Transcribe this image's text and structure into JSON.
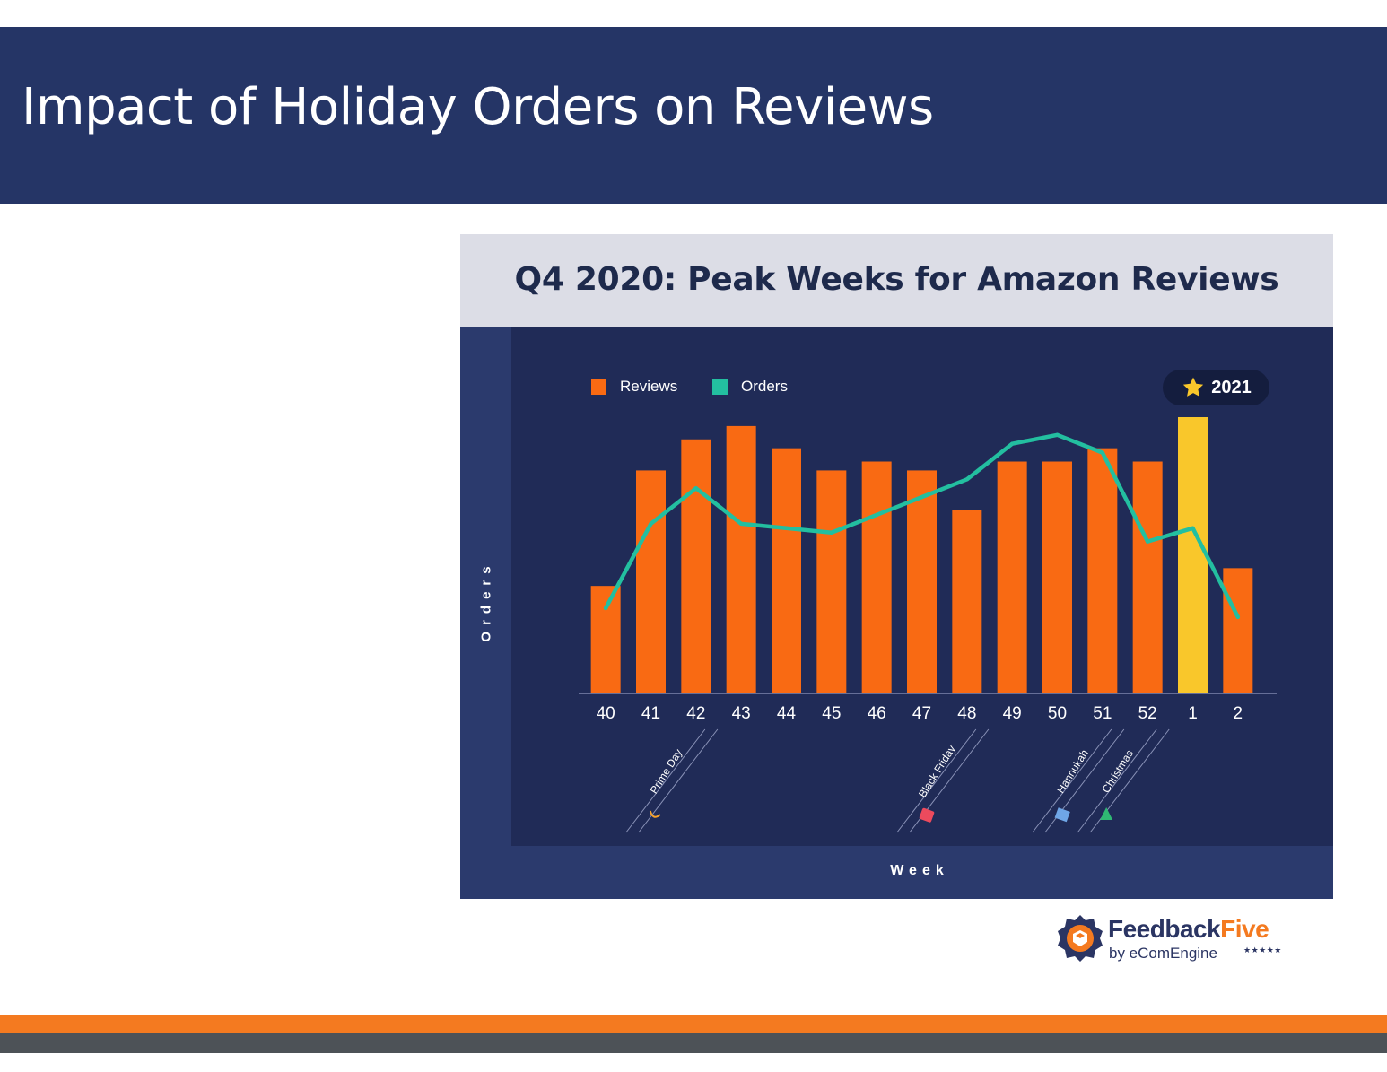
{
  "slide": {
    "title": "Impact of Holiday Orders on Reviews"
  },
  "colors": {
    "header": "#253566",
    "reviews": "#f96a13",
    "orders": "#23bfa0",
    "highlight": "#f9c72b",
    "accent": "#f47a20"
  },
  "chart_data": {
    "type": "bar",
    "title": "Q4 2020: Peak Weeks for Amazon Reviews",
    "xlabel": "Week",
    "ylabel": "Orders",
    "categories": [
      "40",
      "41",
      "42",
      "43",
      "44",
      "45",
      "46",
      "47",
      "48",
      "49",
      "50",
      "51",
      "52",
      "1",
      "2"
    ],
    "series": [
      {
        "name": "Reviews",
        "type": "bar",
        "color": "#f96a13",
        "values": [
          12,
          25,
          28.5,
          30,
          27.5,
          25,
          26,
          25,
          20.5,
          26,
          26,
          27.5,
          26,
          31,
          14
        ]
      },
      {
        "name": "Orders",
        "type": "line",
        "color": "#23bfa0",
        "values": [
          9.5,
          19,
          23,
          19,
          18.5,
          18,
          20,
          22,
          24,
          28,
          29,
          27,
          17,
          18.5,
          8.5
        ]
      }
    ],
    "highlight": {
      "category": "1",
      "label": "2021",
      "color": "#f9c72b",
      "icon": "star-icon"
    },
    "ylim": [
      0,
      31
    ],
    "annotations": [
      {
        "week": "42",
        "label": "Prime Day",
        "icon": "amazon-smile-icon"
      },
      {
        "week": "48",
        "label": "Black Friday",
        "icon": "shopping-bag-icon"
      },
      {
        "week": "51",
        "label": "Hannukah",
        "icon": "menorah-icon"
      },
      {
        "week": "52",
        "label": "Christmas",
        "icon": "christmas-tree-icon"
      }
    ],
    "legend": {
      "position": "top-left",
      "entries": [
        "Reviews",
        "Orders"
      ]
    },
    "grid": false
  },
  "logo": {
    "name_part1": "Feedback",
    "name_part2": "Five",
    "subtitle": "by eComEngine",
    "stars": "★★★★★"
  }
}
